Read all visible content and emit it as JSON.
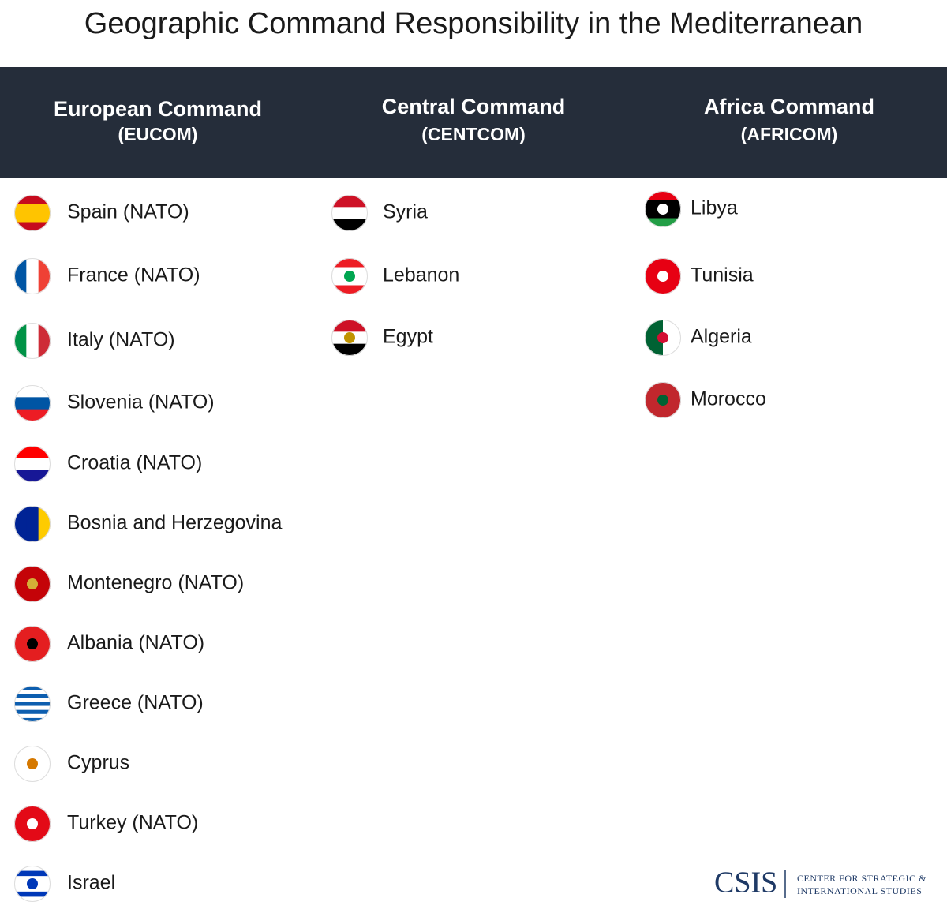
{
  "header": {
    "title": "Geographic Command Responsibility in the Mediterranean"
  },
  "columns": [
    {
      "name": "European Command",
      "abbreviation": "(EUCOM)",
      "countries": [
        "Spain (NATO)",
        "France (NATO)",
        "Italy (NATO)",
        "Slovenia (NATO)",
        "Croatia (NATO)",
        "Bosnia and Herzegovina",
        "Montenegro (NATO)",
        "Albania (NATO)",
        "Greece (NATO)",
        "Cyprus",
        "Turkey (NATO)",
        "Israel"
      ]
    },
    {
      "name": "Central Command",
      "abbreviation": "(CENTCOM)",
      "countries": [
        "Syria",
        "Lebanon",
        "Egypt"
      ]
    },
    {
      "name": "Africa Command",
      "abbreviation": "(AFRICOM)",
      "countries": [
        "Libya",
        "Tunisia",
        "Algeria",
        "Morocco"
      ]
    }
  ],
  "footer": {
    "logo": "CSIS",
    "line1": "CENTER FOR STRATEGIC &",
    "line2": "INTERNATIONAL STUDIES"
  }
}
